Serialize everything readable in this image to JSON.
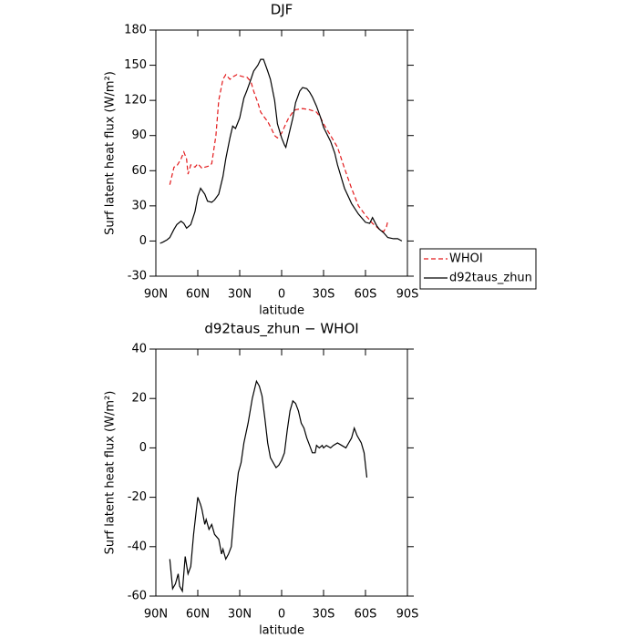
{
  "chart_data": [
    {
      "type": "line",
      "title": "DJF",
      "xlabel": "latitude",
      "ylabel": "Surf latent heat flux (W/m²)",
      "xlim": [
        90,
        -90
      ],
      "xticks": [
        {
          "value": 90,
          "label": "90N"
        },
        {
          "value": 60,
          "label": "60N"
        },
        {
          "value": 30,
          "label": "30N"
        },
        0,
        {
          "value": -30,
          "label": "30S"
        },
        {
          "value": -60,
          "label": "60S"
        },
        {
          "value": -90,
          "label": "90S"
        }
      ],
      "ylim": [
        -30,
        180
      ],
      "yticks": [
        -30,
        0,
        30,
        60,
        90,
        120,
        150,
        180
      ],
      "legend": "outside-right",
      "series": [
        {
          "name": "WHOI",
          "color": "#e31a1c",
          "style": "dashed",
          "x": [
            80,
            77,
            75,
            72,
            70,
            68,
            67,
            65,
            62,
            60,
            57,
            55,
            52,
            50,
            47,
            45,
            42,
            40,
            37,
            35,
            32,
            30,
            27,
            25,
            22,
            20,
            17,
            15,
            12,
            10,
            7,
            5,
            3,
            0,
            -3,
            -5,
            -8,
            -10,
            -15,
            -20,
            -25,
            -28,
            -30,
            -35,
            -40,
            -45,
            -50,
            -55,
            -60,
            -65,
            -70,
            -73,
            -75,
            -76
          ],
          "values": [
            48,
            63,
            64,
            70,
            76,
            70,
            57,
            65,
            63,
            66,
            62,
            63,
            64,
            66,
            90,
            120,
            138,
            142,
            138,
            140,
            142,
            141,
            140,
            140,
            136,
            128,
            118,
            110,
            105,
            102,
            95,
            90,
            88,
            92,
            100,
            105,
            110,
            112,
            113,
            112,
            110,
            105,
            100,
            90,
            80,
            62,
            45,
            30,
            22,
            15,
            10,
            8,
            12,
            17
          ]
        },
        {
          "name": "d92taus_zhun",
          "color": "#000000",
          "style": "solid",
          "x": [
            87,
            85,
            82,
            80,
            77,
            75,
            72,
            70,
            68,
            65,
            62,
            60,
            58,
            55,
            53,
            50,
            48,
            45,
            42,
            40,
            37,
            35,
            33,
            30,
            27,
            25,
            22,
            20,
            17,
            15,
            13,
            10,
            8,
            5,
            3,
            0,
            -2,
            -3,
            -5,
            -8,
            -10,
            -13,
            -15,
            -18,
            -20,
            -22,
            -25,
            -28,
            -30,
            -35,
            -38,
            -40,
            -45,
            -50,
            -55,
            -60,
            -63,
            -65,
            -68,
            -70,
            -73,
            -76,
            -80,
            -83,
            -86
          ],
          "values": [
            -2,
            -1,
            1,
            3,
            10,
            14,
            17,
            15,
            11,
            14,
            25,
            38,
            45,
            40,
            34,
            33,
            35,
            40,
            55,
            70,
            88,
            98,
            96,
            105,
            122,
            128,
            138,
            145,
            150,
            155,
            155,
            145,
            138,
            120,
            100,
            88,
            82,
            80,
            90,
            105,
            118,
            128,
            131,
            130,
            127,
            123,
            115,
            105,
            97,
            85,
            75,
            65,
            45,
            32,
            23,
            16,
            15,
            20,
            13,
            10,
            7,
            3,
            2,
            2,
            0
          ]
        }
      ]
    },
    {
      "type": "line",
      "title": "d92taus_zhun − WHOI",
      "xlabel": "latitude",
      "ylabel": "Surf latent heat flux (W/m²)",
      "xlim": [
        90,
        -90
      ],
      "xticks": [
        {
          "value": 90,
          "label": "90N"
        },
        {
          "value": 60,
          "label": "60N"
        },
        {
          "value": 30,
          "label": "30N"
        },
        0,
        {
          "value": -30,
          "label": "30S"
        },
        {
          "value": -60,
          "label": "60S"
        },
        {
          "value": -90,
          "label": "90S"
        }
      ],
      "ylim": [
        -60,
        40
      ],
      "yticks": [
        -60,
        -40,
        -20,
        0,
        20,
        40
      ],
      "series": [
        {
          "color": "#000000",
          "style": "solid",
          "x": [
            80,
            78,
            76,
            74,
            73,
            71,
            69,
            67,
            65,
            63,
            60,
            58,
            57,
            55,
            54,
            52,
            50,
            48,
            45,
            43,
            42,
            40,
            38,
            36,
            33,
            31,
            29,
            27,
            24,
            21,
            18,
            16,
            14,
            12,
            10,
            8,
            6,
            4,
            2,
            0,
            -2,
            -4,
            -6,
            -8,
            -10,
            -12,
            -14,
            -16,
            -18,
            -20,
            -22,
            -24,
            -25,
            -27,
            -29,
            -30,
            -32,
            -35,
            -37,
            -40,
            -43,
            -46,
            -48,
            -50,
            -52,
            -54,
            -56,
            -57,
            -59,
            -60,
            -61
          ],
          "values": [
            -45,
            -57,
            -55,
            -51,
            -56,
            -58,
            -44,
            -51,
            -48,
            -35,
            -20,
            -23,
            -25,
            -31,
            -29,
            -33,
            -31,
            -35,
            -37,
            -43,
            -41,
            -45,
            -43,
            -40,
            -20,
            -10,
            -6,
            2,
            10,
            20,
            27,
            25,
            21,
            12,
            2,
            -4,
            -6,
            -8,
            -7,
            -5,
            -2,
            7,
            15,
            19,
            18,
            15,
            10,
            8,
            4,
            1,
            -2,
            -2,
            1,
            0,
            1,
            0,
            1,
            0,
            1,
            2,
            1,
            0,
            2,
            4,
            8,
            5,
            3,
            2,
            -2,
            -7,
            -12
          ]
        }
      ]
    }
  ]
}
